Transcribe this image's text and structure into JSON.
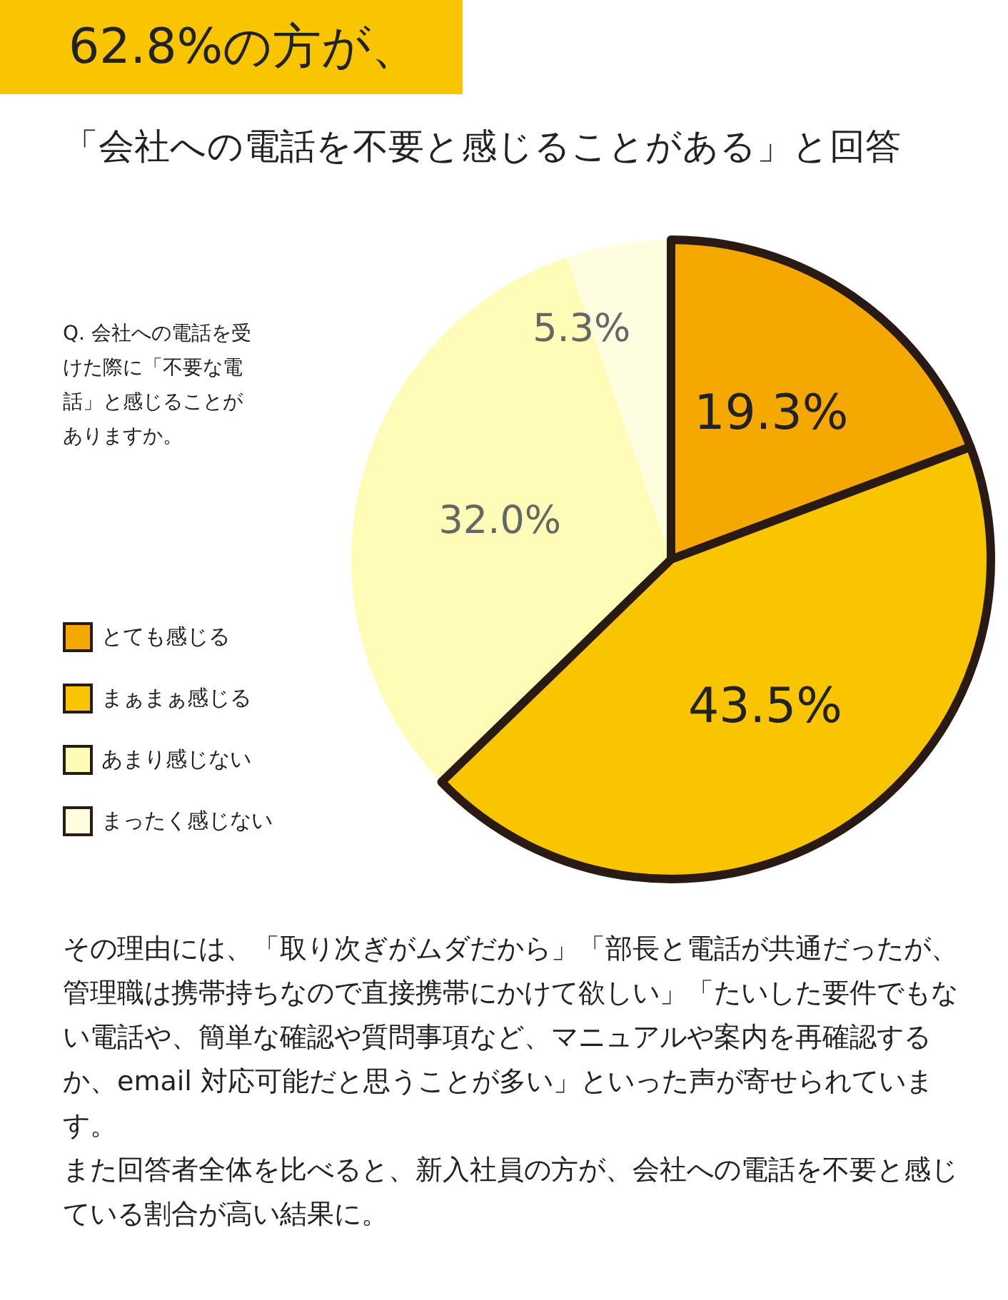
{
  "chart_data": {
    "type": "pie",
    "title": "62.8%の方が、",
    "subtitle": "「会社への電話を不要と感じることがある」と回答",
    "legend_title": "Q. 会社への電話を受けた際に「不要な電話」と感じることがありますか。",
    "categories": [
      "とても感じる",
      "まぁまぁ感じる",
      "あまり感じない",
      "まったく感じない"
    ],
    "values": [
      19.3,
      43.5,
      32.0,
      5.3
    ],
    "colors": [
      "#f5a800",
      "#f8c500",
      "#fffcb8",
      "#fffde0"
    ],
    "value_labels": [
      "19.3%",
      "43.5%",
      "32.0%",
      "5.3%"
    ],
    "legend": "left",
    "annotations": [
      "その理由には、「取り次ぎがムダだから」「部長と電話が共通だったが、管理職は携帯持ちなので直接携帯にかけて欲しい」「たいした要件でもない電話や、簡単な確認や質問事項など、マニュアルや案内を再確認するか、email 対応可能だと思うことが多い」といった声が寄せられています。",
      "また回答者全体を比べると、新入社員の方が、会社への電話を不要と感じている割合が高い結果に。"
    ]
  }
}
